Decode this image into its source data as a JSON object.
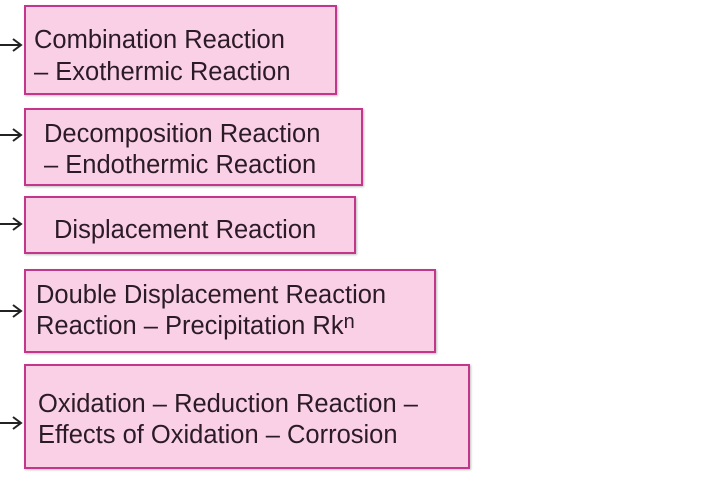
{
  "boxes": [
    {
      "lines": [
        "Combination Reaction",
        "– Exothermic Reaction"
      ]
    },
    {
      "lines": [
        "Decomposition Reaction",
        "– Endothermic Reaction"
      ]
    },
    {
      "lines": [
        "Displacement Reaction"
      ]
    },
    {
      "lines": [
        "Double Displacement Reaction",
        "Reaction – Precipitation Rk"
      ],
      "superscript": "n"
    },
    {
      "lines": [
        "Oxidation – Reduction Reaction –",
        "Effects of Oxidation – Corrosion"
      ]
    }
  ],
  "colors": {
    "fill": "#f9d0e6",
    "border": "#c2378a",
    "text": "#2b1b26"
  },
  "arrow_icon": "right-arrow-icon"
}
